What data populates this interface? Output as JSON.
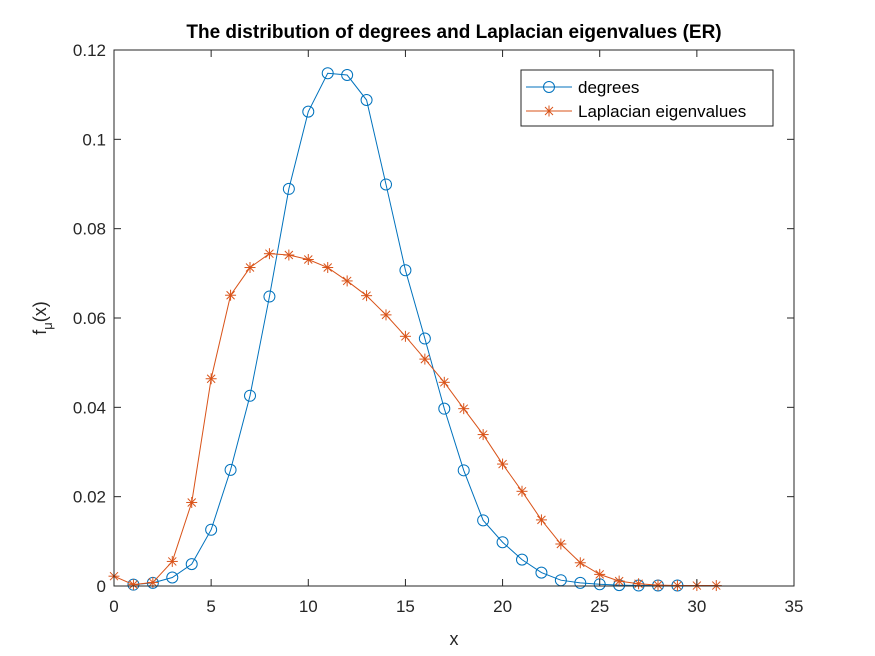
{
  "chart_data": {
    "type": "line",
    "title": "The distribution of degrees and Laplacian eigenvalues (ER)",
    "xlabel": "x",
    "ylabel": "f",
    "ylabel_subscript": "μ",
    "ylabel_suffix": "(x)",
    "xlim": [
      0,
      35
    ],
    "ylim": [
      0,
      0.12
    ],
    "xticks": [
      0,
      5,
      10,
      15,
      20,
      25,
      30,
      35
    ],
    "yticks": [
      0,
      0.02,
      0.04,
      0.06,
      0.08,
      0.1,
      0.12
    ],
    "xtick_labels": [
      "0",
      "5",
      "10",
      "15",
      "20",
      "25",
      "30",
      "35"
    ],
    "ytick_labels": [
      "0",
      "0.02",
      "0.04",
      "0.06",
      "0.08",
      "0.1",
      "0.12"
    ],
    "grid": false,
    "legend_position": "top-right",
    "series": [
      {
        "name": "degrees",
        "color": "#0072BD",
        "marker": "circle",
        "x": [
          1,
          2,
          3,
          4,
          5,
          6,
          7,
          8,
          9,
          10,
          11,
          12,
          13,
          14,
          15,
          16,
          17,
          18,
          19,
          20,
          21,
          22,
          23,
          24,
          25,
          26,
          27,
          28,
          29
        ],
        "y": [
          0.0003,
          0.0007,
          0.0019,
          0.0049,
          0.0126,
          0.026,
          0.0426,
          0.0648,
          0.0889,
          0.1062,
          0.1148,
          0.1144,
          0.1088,
          0.0899,
          0.0707,
          0.0554,
          0.0397,
          0.0259,
          0.0147,
          0.0098,
          0.0059,
          0.003,
          0.0013,
          0.0007,
          0.0004,
          0.0002,
          0.0001,
          0.0001,
          0.0001
        ]
      },
      {
        "name": "Laplacian eigenvalues",
        "color": "#D95319",
        "marker": "asterisk",
        "x": [
          0,
          1,
          2,
          3,
          4,
          5,
          6,
          7,
          8,
          9,
          10,
          11,
          12,
          13,
          14,
          15,
          16,
          17,
          18,
          19,
          20,
          21,
          22,
          23,
          24,
          25,
          26,
          27,
          28,
          29,
          30,
          31
        ],
        "y": [
          0.0022,
          0.0003,
          0.0008,
          0.0055,
          0.0187,
          0.0464,
          0.0651,
          0.0713,
          0.0744,
          0.0741,
          0.0731,
          0.0713,
          0.0683,
          0.065,
          0.0607,
          0.0559,
          0.0508,
          0.0456,
          0.0397,
          0.0339,
          0.0273,
          0.0212,
          0.0148,
          0.0094,
          0.0052,
          0.0026,
          0.0011,
          0.0005,
          0.0002,
          0.0001,
          0.0001,
          0.0001
        ]
      }
    ]
  }
}
